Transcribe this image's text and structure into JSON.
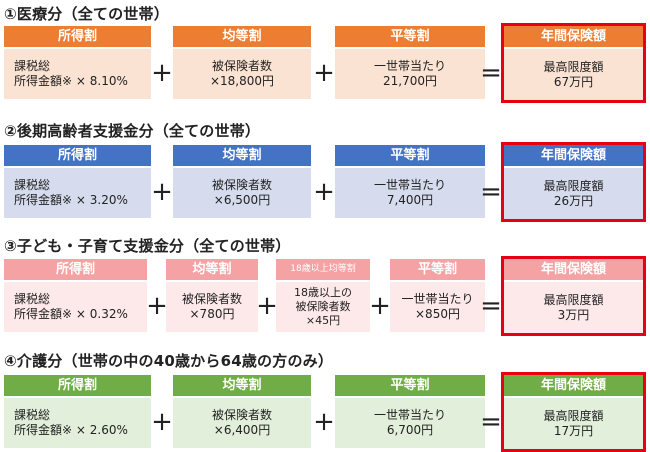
{
  "sections": [
    {
      "title": "①医療分（全ての世帯）",
      "colors": {
        "header": "#ed7d31",
        "body": "#fbe3d3"
      },
      "cols": [
        {
          "header": "所得割",
          "body": "課税総\n所得金額※ × 8.10%"
        },
        {
          "header": "均等割",
          "body": "被保険者数\n×18,800円"
        },
        {
          "header": "平等割",
          "body": "一世帯当たり\n21,700円"
        }
      ],
      "max": {
        "header": "年間保険額",
        "body": "最高限度額\n67万円"
      }
    },
    {
      "title": "②後期高齢者支援金分（全ての世帯）",
      "colors": {
        "header": "#4472c4",
        "body": "#d6dcee"
      },
      "cols": [
        {
          "header": "所得割",
          "body": "課税総\n所得金額※ × 3.20%"
        },
        {
          "header": "均等割",
          "body": "被保険者数\n×6,500円"
        },
        {
          "header": "平等割",
          "body": "一世帯当たり\n7,400円"
        }
      ],
      "max": {
        "header": "年間保険額",
        "body": "最高限度額\n26万円"
      }
    },
    {
      "title": "③子ども・子育て支援金分（全ての世帯）",
      "colors": {
        "header": "#f4a2a3",
        "body": "#fde9e9"
      },
      "cols": [
        {
          "header": "所得割",
          "body": "課税総\n所得金額※ × 0.32%"
        },
        {
          "header": "均等割",
          "body": "被保険者数\n×780円"
        },
        {
          "header": "18歳以上均等割",
          "body": "18歳以上の\n被保険者数\n×45円"
        },
        {
          "header": "平等割",
          "body": "一世帯当たり\n×850円"
        }
      ],
      "max": {
        "header": "年間保険額",
        "body": "最高限度額\n3万円"
      }
    },
    {
      "title": "④介護分（世帯の中の40歳から64歳の方のみ）",
      "colors": {
        "header": "#70ad47",
        "body": "#e2efda"
      },
      "cols": [
        {
          "header": "所得割",
          "body": "課税総\n所得金額※ × 2.60%"
        },
        {
          "header": "均等割",
          "body": "被保険者数\n×6,400円"
        },
        {
          "header": "平等割",
          "body": "一世帯当たり\n6,700円"
        }
      ],
      "max": {
        "header": "年間保険額",
        "body": "最高限度額\n17万円"
      }
    }
  ],
  "operators": {
    "plus": "+",
    "equals": "="
  }
}
